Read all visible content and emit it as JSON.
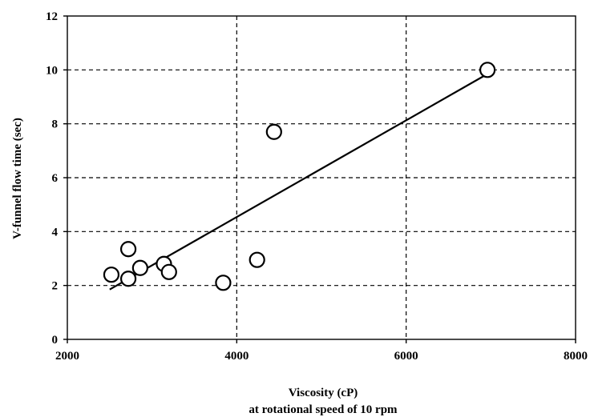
{
  "chart_data": {
    "type": "scatter",
    "xlabel": "Viscosity (cP)",
    "xlabel_sub": "at rotational speed of 10 rpm",
    "ylabel": "V-funnel flow time  (sec)",
    "xlim": [
      2000,
      8000
    ],
    "ylim": [
      0,
      12
    ],
    "xticks": [
      2000,
      4000,
      6000,
      8000
    ],
    "yticks": [
      0,
      2,
      4,
      6,
      8,
      10,
      12
    ],
    "grid": true,
    "grid_style": "dashed",
    "marker": "open-circle",
    "points": [
      {
        "x": 2520,
        "y": 2.4
      },
      {
        "x": 2720,
        "y": 3.35
      },
      {
        "x": 2720,
        "y": 2.25
      },
      {
        "x": 2860,
        "y": 2.65
      },
      {
        "x": 3140,
        "y": 2.8
      },
      {
        "x": 3200,
        "y": 2.5
      },
      {
        "x": 3840,
        "y": 2.1
      },
      {
        "x": 4240,
        "y": 2.95
      },
      {
        "x": 4440,
        "y": 7.7
      },
      {
        "x": 6960,
        "y": 10.0
      }
    ],
    "trendline": {
      "x": [
        2500,
        6960
      ],
      "y": [
        1.85,
        9.85
      ]
    }
  }
}
